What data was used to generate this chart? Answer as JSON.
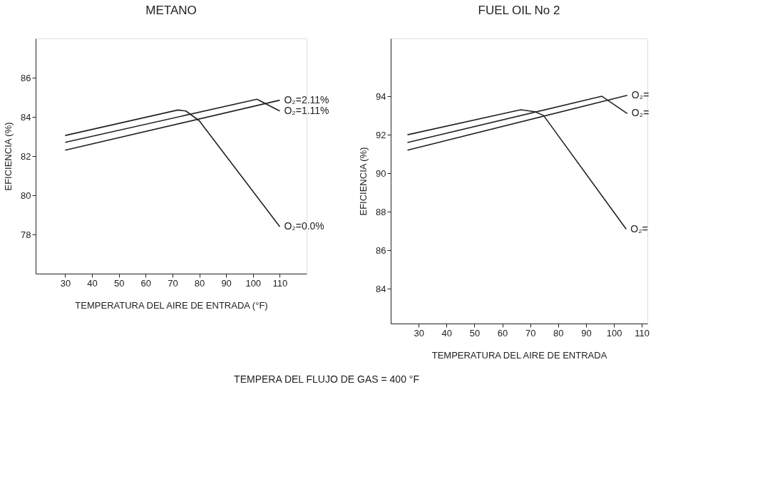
{
  "chart_data": [
    {
      "type": "line",
      "title": "METANO",
      "xlabel": "TEMPERATURA DEL AIRE DE ENTRADA (°F)",
      "ylabel": "EFICIENCIA (%)",
      "xlim": [
        19,
        120
      ],
      "ylim": [
        76,
        88
      ],
      "xticks": [
        30,
        40,
        50,
        60,
        70,
        80,
        90,
        100,
        110
      ],
      "yticks": [
        78,
        80,
        82,
        84,
        86
      ],
      "grid": false,
      "marker": "none",
      "line_style": "solid",
      "series": [
        {
          "name": "O₂=2.11%",
          "color": "#222222",
          "x": [
            30,
            110
          ],
          "values": [
            82.3,
            84.85
          ]
        },
        {
          "name": "O₂=1.11%",
          "color": "#222222",
          "x": [
            30,
            101.5,
            110
          ],
          "values": [
            82.7,
            84.9,
            84.3
          ]
        },
        {
          "name": "O₂=0.0%",
          "color": "#222222",
          "x": [
            30,
            72,
            75,
            80,
            110
          ],
          "values": [
            83.05,
            84.35,
            84.3,
            83.8,
            78.4
          ]
        }
      ]
    },
    {
      "type": "line",
      "title": "FUEL OIL  No 2",
      "xlabel": "TEMPERATURA DEL AIRE DE ENTRADA",
      "ylabel": "EFICIENCIA (%)",
      "xlim": [
        20,
        112
      ],
      "ylim": [
        82.2,
        97
      ],
      "xticks": [
        30,
        40,
        50,
        60,
        70,
        80,
        90,
        100,
        110
      ],
      "yticks": [
        84,
        86,
        88,
        90,
        92,
        94
      ],
      "grid": false,
      "marker": "none",
      "line_style": "solid",
      "annotations": [
        "TEMPERA DEL FLUJO DE GAS = 400 °F"
      ],
      "series": [
        {
          "name": "O₂=",
          "color": "#222222",
          "x": [
            26,
            104.8
          ],
          "values": [
            91.2,
            94.05
          ]
        },
        {
          "name": "O₂=",
          "color": "#222222",
          "x": [
            26,
            95.7,
            104.8
          ],
          "values": [
            91.6,
            94.0,
            93.1
          ]
        },
        {
          "name": "O₂=",
          "color": "#222222",
          "x": [
            26,
            66.6,
            71.7,
            74.8,
            104.4
          ],
          "values": [
            92.0,
            93.3,
            93.2,
            93.0,
            87.1
          ]
        }
      ]
    }
  ]
}
